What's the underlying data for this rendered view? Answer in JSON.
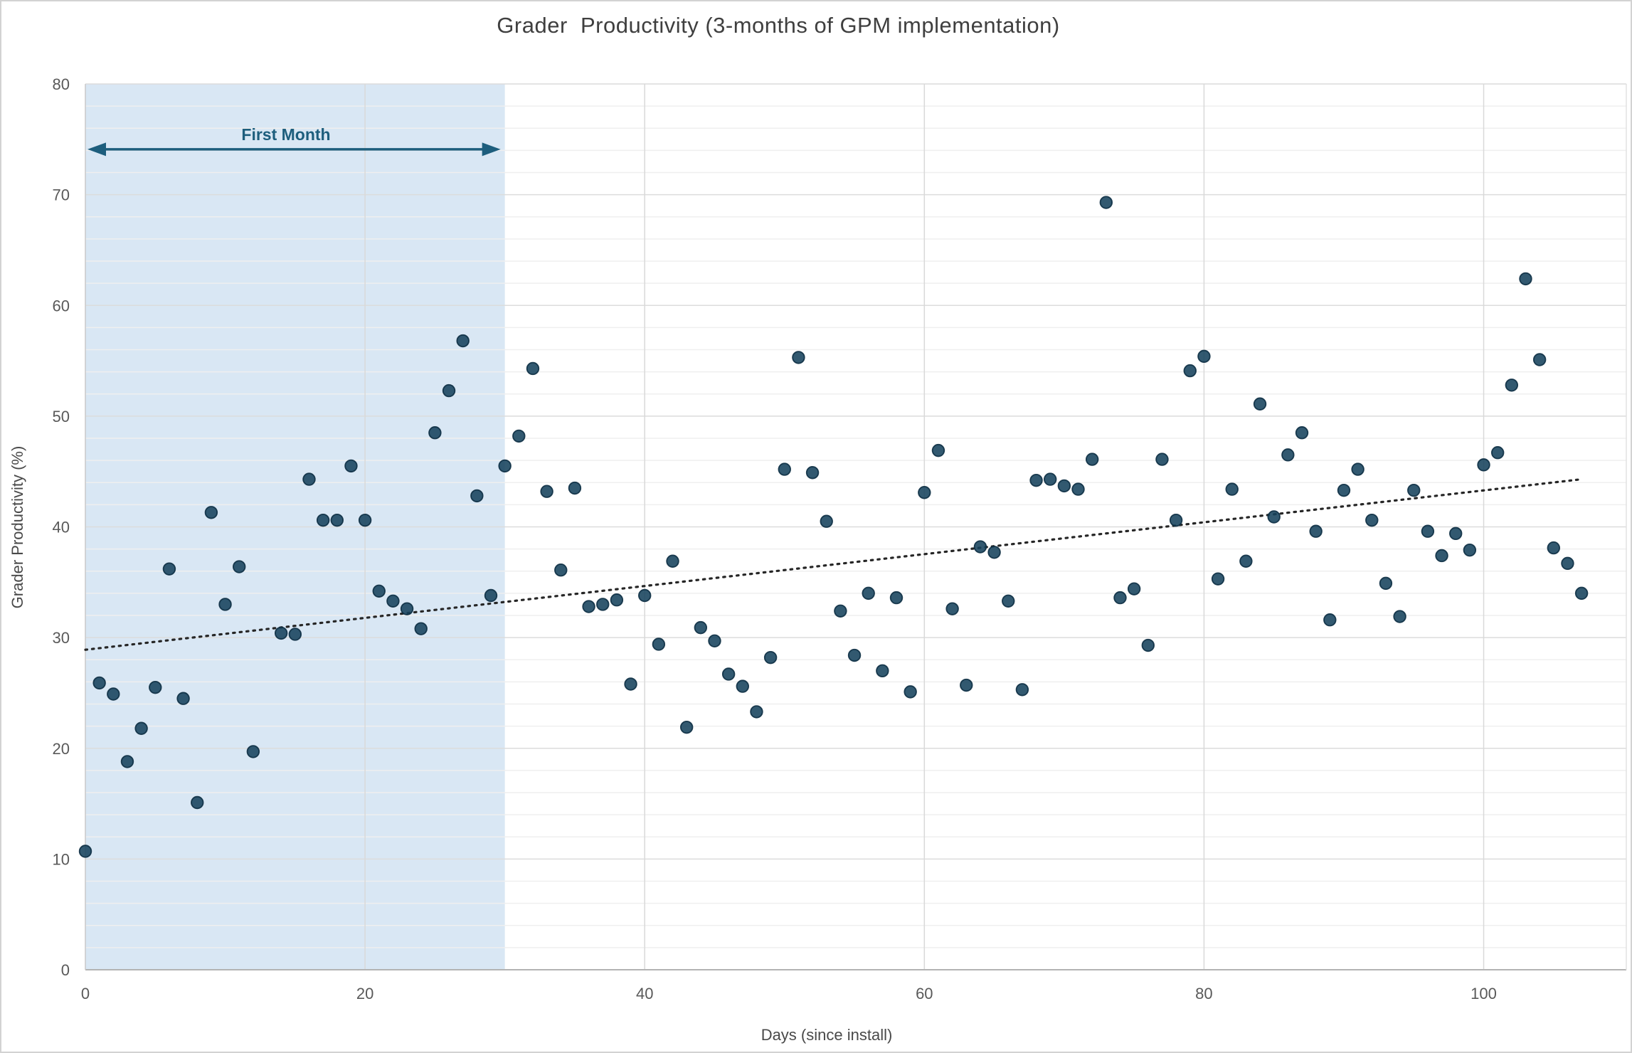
{
  "annotation": {
    "label": "First Month",
    "span_days": [
      0,
      30
    ],
    "arrow_value": 74.1,
    "color": "#1d5e7d"
  },
  "shaded_region": {
    "from_day": 0,
    "to_day": 30,
    "color": "#d9e7f4"
  },
  "trendline": {
    "type": "linear",
    "style": "dotted",
    "color": "#262626",
    "start": {
      "day": 0,
      "value": 28.9
    },
    "end": {
      "day": 107,
      "value": 44.3
    }
  },
  "style_colors": {
    "marker_fill": "#16425c",
    "marker_stroke": "#0c2e42",
    "minor_grid": "#efefef",
    "major_grid": "#dcdcdc",
    "vertical_grid": "#d9d9d9",
    "axis_line": "#b3b3b3",
    "tick_text": "#595959"
  },
  "chart_data": {
    "type": "scatter",
    "title": "Grader  Productivity (3-months of GPM implementation)",
    "xlabel": "Days (since install)",
    "ylabel": "Grader Productivity (%)",
    "x_axis": {
      "min": 0,
      "max": 110.2,
      "major_tick": 20,
      "ticks": [
        0,
        20,
        40,
        60,
        80,
        100
      ],
      "grid": true
    },
    "y_axis": {
      "min": 0,
      "max": 80,
      "major_tick": 10,
      "minor_tick": 2,
      "ticks": [
        0,
        10,
        20,
        30,
        40,
        50,
        60,
        70,
        80
      ],
      "grid": true
    },
    "legend": "none",
    "series": [
      {
        "name": "Grader Productivity",
        "points": [
          [
            0,
            10.7
          ],
          [
            1,
            25.9
          ],
          [
            2,
            24.9
          ],
          [
            3,
            18.8
          ],
          [
            4,
            21.8
          ],
          [
            5,
            25.5
          ],
          [
            6,
            36.2
          ],
          [
            7,
            24.5
          ],
          [
            8,
            15.1
          ],
          [
            9,
            41.3
          ],
          [
            10,
            33.0
          ],
          [
            11,
            36.4
          ],
          [
            12,
            19.7
          ],
          [
            14,
            30.4
          ],
          [
            15,
            30.3
          ],
          [
            16,
            44.3
          ],
          [
            17,
            40.6
          ],
          [
            18,
            40.6
          ],
          [
            19,
            45.5
          ],
          [
            20,
            40.6
          ],
          [
            21,
            34.2
          ],
          [
            22,
            33.3
          ],
          [
            23,
            32.6
          ],
          [
            24,
            30.8
          ],
          [
            25,
            48.5
          ],
          [
            26,
            52.3
          ],
          [
            27,
            56.8
          ],
          [
            28,
            42.8
          ],
          [
            29,
            33.8
          ],
          [
            30,
            45.5
          ],
          [
            31,
            48.2
          ],
          [
            32,
            54.3
          ],
          [
            33,
            43.2
          ],
          [
            34,
            36.1
          ],
          [
            35,
            43.5
          ],
          [
            36,
            32.8
          ],
          [
            37,
            33.0
          ],
          [
            38,
            33.4
          ],
          [
            39,
            25.8
          ],
          [
            40,
            33.8
          ],
          [
            41,
            29.4
          ],
          [
            42,
            36.9
          ],
          [
            43,
            21.9
          ],
          [
            44,
            30.9
          ],
          [
            45,
            29.7
          ],
          [
            46,
            26.7
          ],
          [
            47,
            25.6
          ],
          [
            48,
            23.3
          ],
          [
            49,
            28.2
          ],
          [
            50,
            45.2
          ],
          [
            51,
            55.3
          ],
          [
            52,
            44.9
          ],
          [
            53,
            40.5
          ],
          [
            54,
            32.4
          ],
          [
            55,
            28.4
          ],
          [
            56,
            34.0
          ],
          [
            57,
            27.0
          ],
          [
            58,
            33.6
          ],
          [
            59,
            25.1
          ],
          [
            60,
            43.1
          ],
          [
            61,
            46.9
          ],
          [
            62,
            32.6
          ],
          [
            63,
            25.7
          ],
          [
            64,
            38.2
          ],
          [
            65,
            37.7
          ],
          [
            66,
            33.3
          ],
          [
            67,
            25.3
          ],
          [
            68,
            44.2
          ],
          [
            69,
            44.3
          ],
          [
            70,
            43.7
          ],
          [
            71,
            43.4
          ],
          [
            72,
            46.1
          ],
          [
            73,
            69.3
          ],
          [
            74,
            33.6
          ],
          [
            75,
            34.4
          ],
          [
            76,
            29.3
          ],
          [
            77,
            46.1
          ],
          [
            78,
            40.6
          ],
          [
            79,
            54.1
          ],
          [
            80,
            55.4
          ],
          [
            81,
            35.3
          ],
          [
            82,
            43.4
          ],
          [
            83,
            36.9
          ],
          [
            84,
            51.1
          ],
          [
            85,
            40.9
          ],
          [
            86,
            46.5
          ],
          [
            87,
            48.5
          ],
          [
            88,
            39.6
          ],
          [
            89,
            31.6
          ],
          [
            90,
            43.3
          ],
          [
            91,
            45.2
          ],
          [
            92,
            40.6
          ],
          [
            93,
            34.9
          ],
          [
            94,
            31.9
          ],
          [
            95,
            43.3
          ],
          [
            96,
            39.6
          ],
          [
            97,
            37.4
          ],
          [
            98,
            39.4
          ],
          [
            99,
            37.9
          ],
          [
            100,
            45.6
          ],
          [
            101,
            46.7
          ],
          [
            102,
            52.8
          ],
          [
            103,
            62.4
          ],
          [
            104,
            55.1
          ],
          [
            105,
            38.1
          ],
          [
            106,
            36.7
          ],
          [
            107,
            34.0
          ]
        ]
      }
    ]
  }
}
